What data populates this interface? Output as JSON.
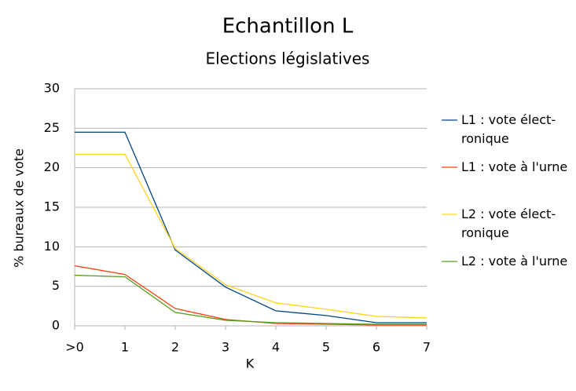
{
  "chart_data": {
    "type": "line",
    "title": "Echantillon L",
    "subtitle": "Elections législatives",
    "x_label": "K",
    "y_label": "% bureaux de vote",
    "categories": [
      ">0",
      "1",
      "2",
      "3",
      "4",
      "5",
      "6",
      "7"
    ],
    "ylim": [
      0,
      30
    ],
    "yticks": [
      0,
      5,
      10,
      15,
      20,
      25,
      30
    ],
    "grid": true,
    "legend": "right",
    "series": [
      {
        "name": "L1 : vote élect­ronique",
        "color": "#004586",
        "values": [
          24.5,
          24.5,
          9.6,
          4.9,
          1.9,
          1.3,
          0.4,
          0.4
        ]
      },
      {
        "name": "L1 : vote à l'urne",
        "color": "#ff420e",
        "values": [
          7.6,
          6.5,
          2.2,
          0.8,
          0.3,
          0.2,
          0.1,
          0.1
        ]
      },
      {
        "name": "L2 : vote élect­ronique",
        "color": "#ffd320",
        "values": [
          21.7,
          21.7,
          9.8,
          5.2,
          2.9,
          2.1,
          1.2,
          1.0
        ]
      },
      {
        "name": "L2 : vote à l'urne",
        "color": "#579d1c",
        "values": [
          6.4,
          6.2,
          1.7,
          0.7,
          0.4,
          0.3,
          0.2,
          0.2
        ]
      }
    ]
  }
}
